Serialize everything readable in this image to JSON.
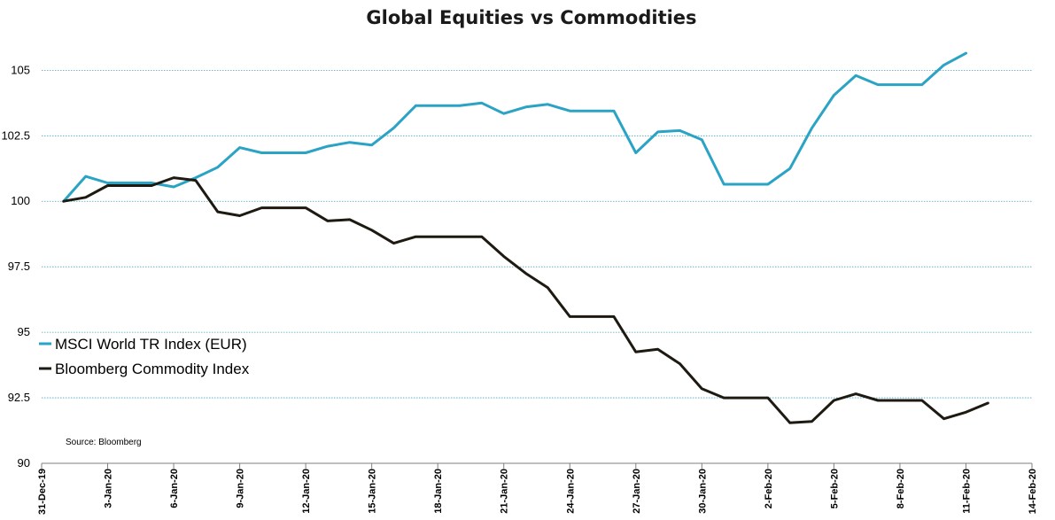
{
  "chart_data": {
    "type": "line",
    "title": "Global Equities vs Commodities",
    "source": "Source: Bloomberg",
    "ylim": [
      90,
      106.5
    ],
    "y_ticks": [
      90,
      92.5,
      95,
      97.5,
      100,
      102.5,
      105
    ],
    "y_tick_labels": [
      "90",
      "92.5",
      "95",
      "97.5",
      "100",
      "102.5",
      "105"
    ],
    "xlim": [
      "2019-12-31",
      "2020-02-14"
    ],
    "x_ticks": [
      "2019-12-31",
      "2020-01-03",
      "2020-01-06",
      "2020-01-09",
      "2020-01-12",
      "2020-01-15",
      "2020-01-18",
      "2020-01-21",
      "2020-01-24",
      "2020-01-27",
      "2020-01-30",
      "2020-02-02",
      "2020-02-05",
      "2020-02-08",
      "2020-02-11",
      "2020-02-14"
    ],
    "x_tick_labels": [
      "31-Dec-19",
      "3-Jan-20",
      "6-Jan-20",
      "9-Jan-20",
      "12-Jan-20",
      "15-Jan-20",
      "18-Jan-20",
      "21-Jan-20",
      "24-Jan-20",
      "27-Jan-20",
      "30-Jan-20",
      "2-Feb-20",
      "5-Feb-20",
      "8-Feb-20",
      "11-Feb-20",
      "14-Feb-20"
    ],
    "grid": "horizontal dotted",
    "legend_position": "left",
    "x": [
      "2020-01-01",
      "2020-01-02",
      "2020-01-03",
      "2020-01-04",
      "2020-01-05",
      "2020-01-06",
      "2020-01-07",
      "2020-01-08",
      "2020-01-09",
      "2020-01-10",
      "2020-01-11",
      "2020-01-12",
      "2020-01-13",
      "2020-01-14",
      "2020-01-15",
      "2020-01-16",
      "2020-01-17",
      "2020-01-18",
      "2020-01-19",
      "2020-01-20",
      "2020-01-21",
      "2020-01-22",
      "2020-01-23",
      "2020-01-24",
      "2020-01-25",
      "2020-01-26",
      "2020-01-27",
      "2020-01-28",
      "2020-01-29",
      "2020-01-30",
      "2020-01-31",
      "2020-02-01",
      "2020-02-02",
      "2020-02-03",
      "2020-02-04",
      "2020-02-05",
      "2020-02-06",
      "2020-02-07",
      "2020-02-08",
      "2020-02-09",
      "2020-02-10",
      "2020-02-11",
      "2020-02-12"
    ],
    "series": [
      {
        "name": "MSCI World TR Index (EUR)",
        "color": "#2aa3c4",
        "values": [
          100,
          100.95,
          100.7,
          100.7,
          100.7,
          100.55,
          100.9,
          101.3,
          102.05,
          101.85,
          101.85,
          101.85,
          102.1,
          102.25,
          102.15,
          102.8,
          103.65,
          103.65,
          103.65,
          103.75,
          103.35,
          103.6,
          103.7,
          103.45,
          103.45,
          103.45,
          101.85,
          102.65,
          102.7,
          102.35,
          100.65,
          100.65,
          100.65,
          101.25,
          102.8,
          104.05,
          104.8,
          104.45,
          104.45,
          104.45,
          105.2,
          105.65,
          null
        ]
      },
      {
        "name": "Bloomberg Commodity Index",
        "color": "#1e1a12",
        "values": [
          100,
          100.15,
          100.6,
          100.6,
          100.6,
          100.9,
          100.8,
          99.6,
          99.45,
          99.75,
          99.75,
          99.75,
          99.25,
          99.3,
          98.9,
          98.4,
          98.65,
          98.65,
          98.65,
          98.65,
          97.9,
          97.25,
          96.7,
          95.6,
          95.6,
          95.6,
          94.25,
          94.35,
          93.8,
          92.85,
          92.5,
          92.5,
          92.5,
          91.55,
          91.6,
          92.4,
          92.65,
          92.4,
          92.4,
          92.4,
          91.7,
          91.95,
          92.3
        ]
      }
    ]
  }
}
